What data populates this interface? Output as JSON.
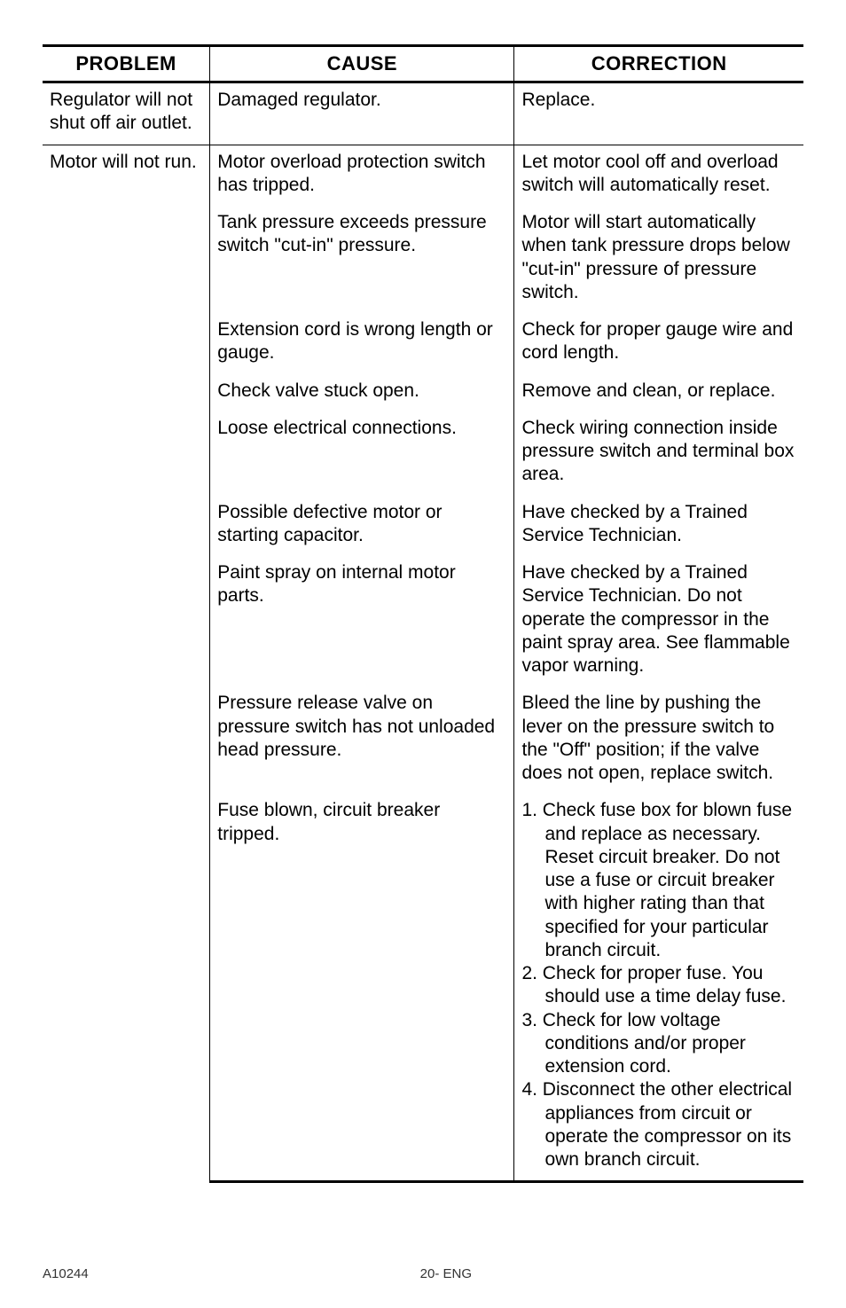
{
  "headers": {
    "problem": "PROBLEM",
    "cause": "CAUSE",
    "correction": "CORRECTION"
  },
  "rows": [
    {
      "problem": "Regulator will not shut off air outlet.",
      "items": [
        {
          "cause": "Damaged regulator.",
          "correction": "Replace."
        }
      ]
    },
    {
      "problem": "Motor will not run.",
      "items": [
        {
          "cause": "Motor overload protection switch has tripped.",
          "correction": "Let motor cool off and overload switch will automatically reset."
        },
        {
          "cause": "Tank pressure exceeds pressure switch \"cut-in\" pressure.",
          "correction": "Motor will start automatically when tank pressure drops below \"cut-in\" pressure of pressure switch."
        },
        {
          "cause": "Extension cord is wrong length or gauge.",
          "correction": "Check for proper gauge wire and cord length."
        },
        {
          "cause": "Check valve stuck open.",
          "correction": "Remove and clean, or replace."
        },
        {
          "cause": "Loose electrical connections.",
          "correction": "Check wiring connection inside pressure switch and terminal box area."
        },
        {
          "cause": "Possible defective motor or starting capacitor.",
          "correction": "Have checked by a Trained Service Technician."
        },
        {
          "cause": "Paint spray on internal motor parts.",
          "correction": "Have checked by a Trained Service Technician.  Do not operate the compressor in the paint spray area.  See flammable vapor warning."
        },
        {
          "cause": "Pressure release valve on pressure switch has not unloaded head pressure.",
          "correction": "Bleed the line by pushing the lever on the pressure switch to the \"Off\" position; if the valve does not open, replace switch."
        },
        {
          "cause": "Fuse blown, circuit breaker tripped.",
          "correction_list": [
            "1. Check fuse box for blown fuse and replace as necessary. Reset circuit breaker. Do not use a fuse or circuit breaker with higher rating than that specified for your particular branch circuit.",
            "2. Check for proper fuse. You should use a time delay fuse.",
            "3. Check for low voltage conditions and/or proper extension cord.",
            "4. Disconnect the other electrical appliances from circuit or operate the compressor on its own branch circuit."
          ]
        }
      ]
    }
  ],
  "footer": {
    "left": "A10244",
    "center": "20- ENG"
  },
  "colors": {
    "text": "#000000",
    "background": "#ffffff",
    "border": "#000000"
  },
  "fonts": {
    "body_family": "Arial, Helvetica, sans-serif",
    "header_size_pt": 17,
    "body_size_pt": 16,
    "footer_size_pt": 11
  }
}
